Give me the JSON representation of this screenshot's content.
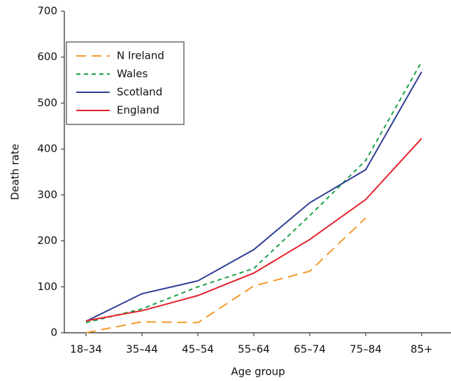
{
  "chart_data": {
    "type": "line",
    "x_label": "Age group",
    "y_label": "Death rate",
    "categories": [
      "18–34",
      "35–44",
      "45–54",
      "55–64",
      "65–74",
      "75–84",
      "85+"
    ],
    "series": [
      {
        "name": "N Ireland",
        "color": "#f39a2b",
        "dash": "long",
        "values": [
          0,
          24,
          22,
          102,
          134,
          250,
          null
        ]
      },
      {
        "name": "Wales",
        "color": "#1aa04a",
        "dash": "short",
        "values": [
          22,
          52,
          100,
          140,
          255,
          375,
          590
        ]
      },
      {
        "name": "Scotland",
        "color": "#2e3e94",
        "dash": "solid",
        "values": [
          25,
          85,
          113,
          181,
          283,
          355,
          568
        ]
      },
      {
        "name": "England",
        "color": "#e4202a",
        "dash": "solid",
        "values": [
          26,
          48,
          81,
          130,
          203,
          290,
          423
        ]
      }
    ],
    "ylim": [
      0,
      700
    ],
    "yticks": [
      0,
      100,
      200,
      300,
      400,
      500,
      600,
      700
    ],
    "legend": "upper left"
  }
}
